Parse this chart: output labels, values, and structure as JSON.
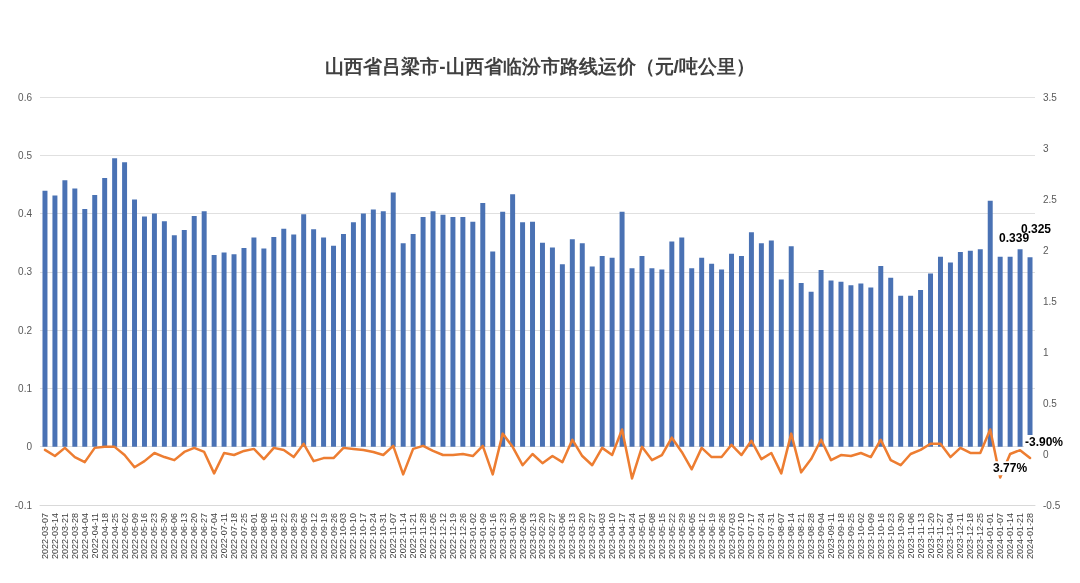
{
  "chart_data": {
    "type": "bar",
    "title": "山西省吕梁市-山西省临汾市路线运价（元/吨公里）",
    "categories": [
      "2022-03-07",
      "2022-03-14",
      "2022-03-21",
      "2022-03-28",
      "2022-04-04",
      "2022-04-11",
      "2022-04-18",
      "2022-04-25",
      "2022-05-02",
      "2022-05-09",
      "2022-05-16",
      "2022-05-23",
      "2022-05-30",
      "2022-06-06",
      "2022-06-13",
      "2022-06-20",
      "2022-06-27",
      "2022-07-04",
      "2022-07-11",
      "2022-07-18",
      "2022-07-25",
      "2022-08-01",
      "2022-08-08",
      "2022-08-15",
      "2022-08-22",
      "2022-08-29",
      "2022-09-05",
      "2022-09-12",
      "2022-09-19",
      "2022-09-26",
      "2022-10-03",
      "2022-10-10",
      "2022-10-17",
      "2022-10-24",
      "2022-10-31",
      "2022-11-07",
      "2022-11-14",
      "2022-11-21",
      "2022-11-28",
      "2022-12-05",
      "2022-12-12",
      "2022-12-19",
      "2022-12-26",
      "2023-01-02",
      "2023-01-09",
      "2023-01-16",
      "2023-01-23",
      "2023-01-30",
      "2023-02-06",
      "2023-02-13",
      "2023-02-20",
      "2023-02-27",
      "2023-03-06",
      "2023-03-13",
      "2023-03-20",
      "2023-03-27",
      "2023-04-03",
      "2023-04-10",
      "2023-04-17",
      "2023-04-24",
      "2023-05-01",
      "2023-05-08",
      "2023-05-15",
      "2023-05-22",
      "2023-05-29",
      "2023-06-05",
      "2023-06-12",
      "2023-06-19",
      "2023-06-26",
      "2023-07-03",
      "2023-07-10",
      "2023-07-17",
      "2023-07-24",
      "2023-07-31",
      "2023-08-07",
      "2023-08-14",
      "2023-08-21",
      "2023-08-28",
      "2023-09-04",
      "2023-09-11",
      "2023-09-18",
      "2023-09-25",
      "2023-10-02",
      "2023-10-09",
      "2023-10-16",
      "2023-10-23",
      "2023-10-30",
      "2023-11-06",
      "2023-11-13",
      "2023-11-20",
      "2023-11-27",
      "2023-12-04",
      "2023-12-11",
      "2023-12-18",
      "2023-12-25",
      "2024-01-01",
      "2024-01-07",
      "2024-01-14",
      "2024-01-21",
      "2024-01-28"
    ],
    "series": [
      {
        "color": "#4a72b4",
        "values": [
          0.439,
          0.431,
          0.457,
          0.443,
          0.408,
          0.432,
          0.461,
          0.495,
          0.488,
          0.424,
          0.395,
          0.4,
          0.387,
          0.363,
          0.372,
          0.396,
          0.404,
          0.329,
          0.333,
          0.33,
          0.341,
          0.359,
          0.34,
          0.36,
          0.374,
          0.364,
          0.399,
          0.373,
          0.359,
          0.345,
          0.365,
          0.385,
          0.4,
          0.407,
          0.404,
          0.436,
          0.349,
          0.365,
          0.394,
          0.404,
          0.398,
          0.394,
          0.394,
          0.386,
          0.418,
          0.335,
          0.403,
          0.433,
          0.385,
          0.386,
          0.35,
          0.342,
          0.313,
          0.356,
          0.349,
          0.309,
          0.327,
          0.324,
          0.403,
          0.306,
          0.327,
          0.306,
          0.304,
          0.352,
          0.359,
          0.306,
          0.324,
          0.314,
          0.304,
          0.331,
          0.327,
          0.368,
          0.349,
          0.354,
          0.287,
          0.344,
          0.281,
          0.266,
          0.303,
          0.285,
          0.283,
          0.277,
          0.28,
          0.273,
          0.31,
          0.29,
          0.259,
          0.259,
          0.269,
          0.297,
          0.326,
          0.316,
          0.334,
          0.336,
          0.339,
          0.422,
          0.326,
          0.326,
          0.339,
          0.325
        ],
        "value_labels": [
          null,
          null,
          null,
          null,
          null,
          null,
          null,
          null,
          null,
          null,
          null,
          null,
          null,
          null,
          null,
          null,
          null,
          null,
          null,
          null,
          null,
          null,
          null,
          null,
          null,
          null,
          null,
          null,
          null,
          null,
          null,
          null,
          null,
          null,
          null,
          null,
          null,
          null,
          null,
          null,
          null,
          null,
          null,
          null,
          null,
          null,
          null,
          null,
          null,
          null,
          null,
          null,
          null,
          null,
          null,
          null,
          null,
          null,
          null,
          null,
          null,
          null,
          null,
          null,
          null,
          null,
          null,
          null,
          null,
          null,
          null,
          null,
          null,
          null,
          null,
          null,
          null,
          null,
          null,
          null,
          null,
          null,
          null,
          null,
          null,
          null,
          null,
          null,
          null,
          null,
          null,
          null,
          null,
          null,
          null,
          null,
          null,
          null,
          "0.339",
          "0.325"
        ]
      },
      {
        "type": "line",
        "axis": "y2",
        "color": "#ed7d31",
        "values": [
          0.04,
          -0.02,
          0.06,
          -0.03,
          -0.08,
          0.06,
          0.07,
          0.07,
          -0.01,
          -0.13,
          -0.07,
          0.01,
          -0.03,
          -0.06,
          0.02,
          0.06,
          0.02,
          -0.19,
          0.01,
          -0.01,
          0.03,
          0.05,
          -0.05,
          0.06,
          0.04,
          -0.03,
          0.1,
          -0.07,
          -0.04,
          -0.04,
          0.06,
          0.05,
          0.04,
          0.02,
          -0.01,
          0.08,
          -0.2,
          0.05,
          0.08,
          0.03,
          -0.01,
          -0.01,
          0,
          -0.02,
          0.08,
          -0.2,
          0.2,
          0.07,
          -0.11,
          0,
          -0.09,
          -0.02,
          -0.08,
          0.14,
          -0.02,
          -0.11,
          0.06,
          -0.01,
          0.24,
          -0.24,
          0.07,
          -0.06,
          -0.01,
          0.16,
          0.02,
          -0.15,
          0.06,
          -0.03,
          -0.03,
          0.09,
          -0.01,
          0.13,
          -0.05,
          0.01,
          -0.19,
          0.2,
          -0.18,
          -0.05,
          0.14,
          -0.06,
          -0.01,
          -0.02,
          0.01,
          -0.03,
          0.14,
          -0.06,
          -0.11,
          0,
          0.04,
          0.1,
          0.1,
          -0.03,
          0.06,
          0.01,
          0.01,
          0.24,
          -0.23,
          0,
          0.0377,
          -0.039
        ],
        "value_labels": [
          null,
          null,
          null,
          null,
          null,
          null,
          null,
          null,
          null,
          null,
          null,
          null,
          null,
          null,
          null,
          null,
          null,
          null,
          null,
          null,
          null,
          null,
          null,
          null,
          null,
          null,
          null,
          null,
          null,
          null,
          null,
          null,
          null,
          null,
          null,
          null,
          null,
          null,
          null,
          null,
          null,
          null,
          null,
          null,
          null,
          null,
          null,
          null,
          null,
          null,
          null,
          null,
          null,
          null,
          null,
          null,
          null,
          null,
          null,
          null,
          null,
          null,
          null,
          null,
          null,
          null,
          null,
          null,
          null,
          null,
          null,
          null,
          null,
          null,
          null,
          null,
          null,
          null,
          null,
          null,
          null,
          null,
          null,
          null,
          null,
          null,
          null,
          null,
          null,
          null,
          null,
          null,
          null,
          null,
          null,
          null,
          null,
          null,
          "3.77%",
          "-3.90%"
        ]
      }
    ],
    "ylim": [
      -0.1,
      0.6
    ],
    "yticks": [
      -0.1,
      0,
      0.1,
      0.2,
      0.3,
      0.4,
      0.5,
      0.6
    ],
    "y2lim": [
      -0.5,
      3.5
    ],
    "y2ticks": [
      -0.5,
      0,
      0.5,
      1,
      1.5,
      2,
      2.5,
      3,
      3.5
    ],
    "grid": "y"
  }
}
